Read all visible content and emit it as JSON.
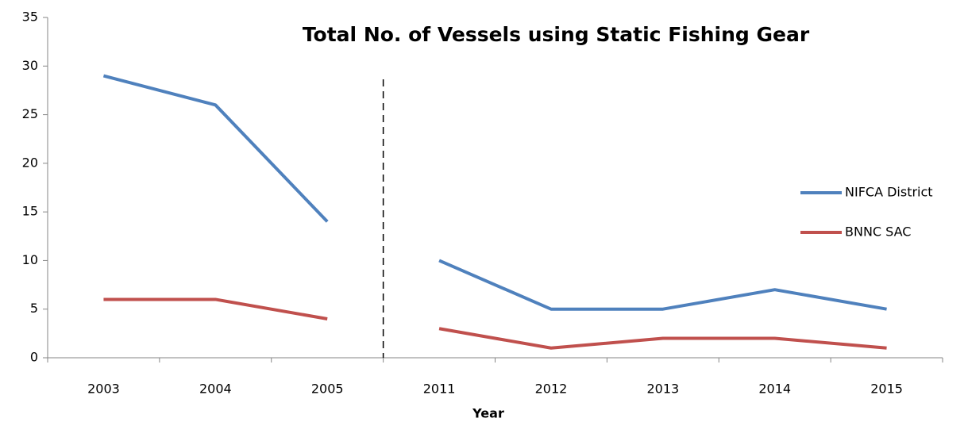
{
  "chart_data": {
    "type": "line",
    "title": "Total No. of Vessels using Static Fishing Gear",
    "x_label": "Year",
    "categories": [
      "2003",
      "2004",
      "2005",
      "2011",
      "2012",
      "2013",
      "2014",
      "2015"
    ],
    "series": [
      {
        "name": "NIFCA District",
        "color": "#4f81bd",
        "values": [
          29,
          26,
          14,
          10,
          5,
          5,
          7,
          5
        ]
      },
      {
        "name": "BNNC SAC",
        "color": "#c0504d",
        "values": [
          6,
          6,
          4,
          3,
          1,
          2,
          2,
          1
        ]
      }
    ],
    "divider_after_category": "2005",
    "ylim": [
      0,
      35
    ],
    "yticks": [
      0,
      5,
      10,
      15,
      20,
      25,
      30,
      35
    ],
    "grid": false,
    "legend": "right"
  }
}
